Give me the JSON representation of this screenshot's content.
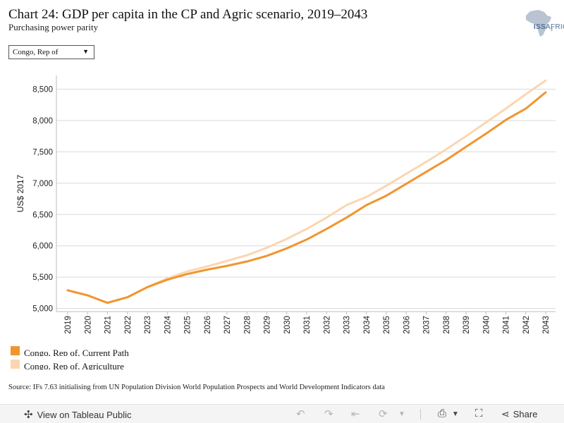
{
  "header": {
    "title": "Chart 24: GDP per capita in the CP and Agric scenario, 2019–2043",
    "subtitle": "Purchasing power parity"
  },
  "logo": {
    "text_main": "ISS",
    "text_sub": "AFRICA"
  },
  "filter": {
    "selected": "Congo, Rep of"
  },
  "legend": {
    "items": [
      {
        "label": "Congo, Rep of, Current Path",
        "color": "#f0952f"
      },
      {
        "label": "Congo, Rep of, Agriculture",
        "color": "#fbd6b1"
      }
    ]
  },
  "source": "Source: IFs 7.63 initialising from UN Population Division World Population Prospects and World Development Indicators data",
  "toolbar": {
    "view_label": "View on Tableau Public",
    "share_label": "Share"
  },
  "chart_data": {
    "type": "line",
    "ylabel": "US$ 2017",
    "xlabel": "",
    "ylim": [
      4950,
      8720
    ],
    "yticks": [
      5000,
      5500,
      6000,
      6500,
      7000,
      7500,
      8000,
      8500
    ],
    "ytick_labels": [
      "5,000",
      "5,500",
      "6,000",
      "6,500",
      "7,000",
      "7,500",
      "8,000",
      "8,500"
    ],
    "grid": true,
    "x": [
      "2019",
      "2020",
      "2021",
      "2022",
      "2023",
      "2024",
      "2025",
      "2026",
      "2027",
      "2028",
      "2029",
      "2030",
      "2031",
      "2032",
      "2033",
      "2034",
      "2035",
      "2036",
      "2037",
      "2038",
      "2039",
      "2040",
      "2041",
      "2042",
      "2043"
    ],
    "series": [
      {
        "name": "Congo, Rep of, Agriculture",
        "color": "#fbd6b1",
        "values": [
          5290,
          5210,
          5090,
          5180,
          5340,
          5480,
          5590,
          5670,
          5760,
          5850,
          5970,
          6110,
          6270,
          6450,
          6650,
          6780,
          6960,
          7150,
          7340,
          7540,
          7750,
          7970,
          8190,
          8420,
          8640
        ]
      },
      {
        "name": "Congo, Rep of, Current Path",
        "color": "#f0952f",
        "values": [
          5290,
          5210,
          5090,
          5180,
          5340,
          5460,
          5550,
          5620,
          5680,
          5750,
          5840,
          5960,
          6100,
          6270,
          6450,
          6650,
          6800,
          6990,
          7180,
          7370,
          7580,
          7790,
          8010,
          8190,
          8450
        ]
      }
    ]
  }
}
